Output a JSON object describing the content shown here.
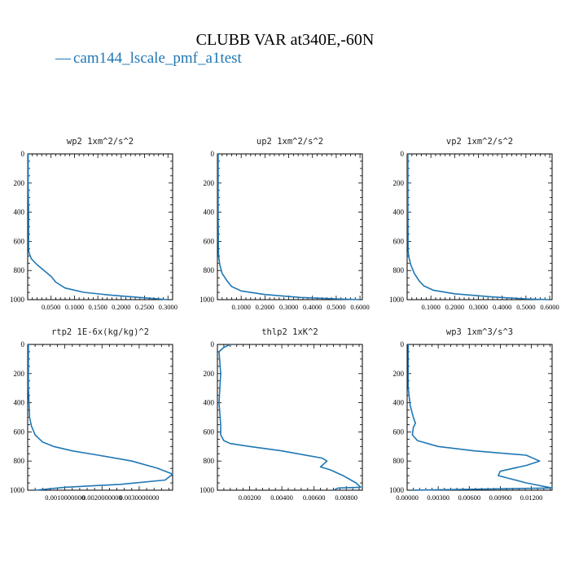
{
  "figure": {
    "title": "CLUBB VAR at340E,-60N",
    "legend_label": "cam144_lscale_pmf_a1test",
    "legend_prefix": "—",
    "line_color": "#1f77b4"
  },
  "chart_data": [
    {
      "type": "line",
      "title": "wp2  1xm^2/s^2",
      "ylabel": "",
      "xlabel": "",
      "ylim": [
        1000,
        0
      ],
      "xlim": [
        0,
        0.31
      ],
      "yticks": [
        0,
        200,
        400,
        600,
        800,
        1000
      ],
      "xticks": [
        0.05,
        0.1,
        0.15,
        0.2,
        0.25,
        0.3
      ],
      "xtick_labels": [
        "0.0500",
        "0.1000",
        "0.1500",
        "0.2000",
        "0.2500",
        "0.3000"
      ],
      "series": [
        {
          "name": "cam144_lscale_pmf_a1test",
          "x": [
            0.001,
            0.001,
            0.002,
            0.002,
            0.002,
            0.003,
            0.008,
            0.02,
            0.035,
            0.05,
            0.06,
            0.08,
            0.12,
            0.18,
            0.24,
            0.3
          ],
          "y": [
            0,
            200,
            400,
            600,
            650,
            680,
            720,
            760,
            800,
            840,
            880,
            920,
            950,
            970,
            985,
            1000
          ]
        }
      ]
    },
    {
      "type": "line",
      "title": "up2  1xm^2/s^2",
      "ylabel": "",
      "xlabel": "",
      "ylim": [
        1000,
        0
      ],
      "xlim": [
        0,
        0.61
      ],
      "yticks": [
        0,
        200,
        400,
        600,
        800,
        1000
      ],
      "xticks": [
        0.1,
        0.2,
        0.3,
        0.4,
        0.5,
        0.6
      ],
      "xtick_labels": [
        "0.1000",
        "0.2000",
        "0.3000",
        "0.4000",
        "0.5000",
        "0.6000"
      ],
      "series": [
        {
          "name": "cam144_lscale_pmf_a1test",
          "x": [
            0.003,
            0.003,
            0.004,
            0.005,
            0.01,
            0.02,
            0.04,
            0.06,
            0.1,
            0.2,
            0.35,
            0.5,
            0.6
          ],
          "y": [
            0,
            400,
            650,
            700,
            760,
            820,
            870,
            910,
            940,
            965,
            985,
            995,
            1000
          ]
        }
      ]
    },
    {
      "type": "line",
      "title": "vp2  1xm^2/s^2",
      "ylabel": "",
      "xlabel": "",
      "ylim": [
        1000,
        0
      ],
      "xlim": [
        0,
        0.61
      ],
      "yticks": [
        0,
        200,
        400,
        600,
        800,
        1000
      ],
      "xticks": [
        0.1,
        0.2,
        0.3,
        0.4,
        0.5,
        0.6
      ],
      "xtick_labels": [
        "0.1000",
        "0.2000",
        "0.3000",
        "0.4000",
        "0.5000",
        "0.6000"
      ],
      "series": [
        {
          "name": "cam144_lscale_pmf_a1test",
          "x": [
            0.003,
            0.003,
            0.004,
            0.006,
            0.015,
            0.03,
            0.05,
            0.07,
            0.11,
            0.2,
            0.35,
            0.5,
            0.6
          ],
          "y": [
            0,
            400,
            650,
            700,
            760,
            820,
            870,
            905,
            935,
            960,
            980,
            995,
            1000
          ]
        }
      ]
    },
    {
      "type": "line",
      "title": "rtp2  1E-6x(kg/kg)^2",
      "ylabel": "",
      "xlabel": "",
      "ylim": [
        1000,
        0
      ],
      "xlim": [
        0,
        0.0039
      ],
      "yticks": [
        0,
        200,
        400,
        600,
        800,
        1000
      ],
      "xticks": [
        0.001,
        0.002,
        0.003
      ],
      "xtick_labels": [
        "0.0010000000",
        "0.0020000000",
        "0.0030000000"
      ],
      "series": [
        {
          "name": "cam144_lscale_pmf_a1test",
          "x": [
            2e-05,
            2e-05,
            5e-05,
            0.0001,
            0.0002,
            0.0004,
            0.0007,
            0.0012,
            0.0019,
            0.0028,
            0.0035,
            0.0039,
            0.0037,
            0.0025,
            0.001,
            0.0002
          ],
          "y": [
            0,
            300,
            500,
            560,
            620,
            670,
            700,
            730,
            760,
            800,
            850,
            890,
            930,
            960,
            980,
            1000
          ]
        }
      ]
    },
    {
      "type": "line",
      "title": "thlp2  1xK^2",
      "ylabel": "",
      "xlabel": "",
      "ylim": [
        1000,
        0
      ],
      "xlim": [
        0,
        0.009
      ],
      "yticks": [
        0,
        200,
        400,
        600,
        800,
        1000
      ],
      "xticks": [
        0.002,
        0.004,
        0.006,
        0.008
      ],
      "xtick_labels": [
        "0.00200",
        "0.00400",
        "0.00600",
        "0.00800"
      ],
      "series": [
        {
          "name": "cam144_lscale_pmf_a1test",
          "x": [
            0.0008,
            0.0004,
            0.0001,
            0.0002,
            0.0001,
            0.0002,
            0.0002,
            0.0004,
            0.0008,
            0.002,
            0.004,
            0.0065,
            0.0068,
            0.0064,
            0.007,
            0.0078,
            0.0086,
            0.0089,
            0.0075,
            0.0072
          ],
          "y": [
            0,
            20,
            50,
            200,
            400,
            550,
            620,
            660,
            680,
            700,
            730,
            780,
            800,
            840,
            860,
            900,
            950,
            980,
            985,
            1000
          ]
        }
      ]
    },
    {
      "type": "line",
      "title": "wp3  1xm^3/s^3",
      "ylabel": "",
      "xlabel": "",
      "ylim": [
        1000,
        0
      ],
      "xlim": [
        0,
        0.014
      ],
      "yticks": [
        0,
        200,
        400,
        600,
        800,
        1000
      ],
      "xticks": [
        0,
        0.003,
        0.006,
        0.009,
        0.012
      ],
      "xtick_labels": [
        "0.00000",
        "0.00300",
        "0.00600",
        "0.00900",
        "0.01200"
      ],
      "series": [
        {
          "name": "cam144_lscale_pmf_a1test",
          "x": [
            0.0001,
            0.0001,
            0.0003,
            0.0006,
            0.0008,
            0.0006,
            0.0005,
            0.001,
            0.003,
            0.0065,
            0.0115,
            0.0128,
            0.0115,
            0.009,
            0.0088,
            0.0115,
            0.014,
            0.0005
          ],
          "y": [
            0,
            300,
            420,
            500,
            540,
            570,
            620,
            660,
            700,
            730,
            760,
            800,
            830,
            870,
            900,
            950,
            985,
            1000
          ]
        }
      ]
    }
  ]
}
